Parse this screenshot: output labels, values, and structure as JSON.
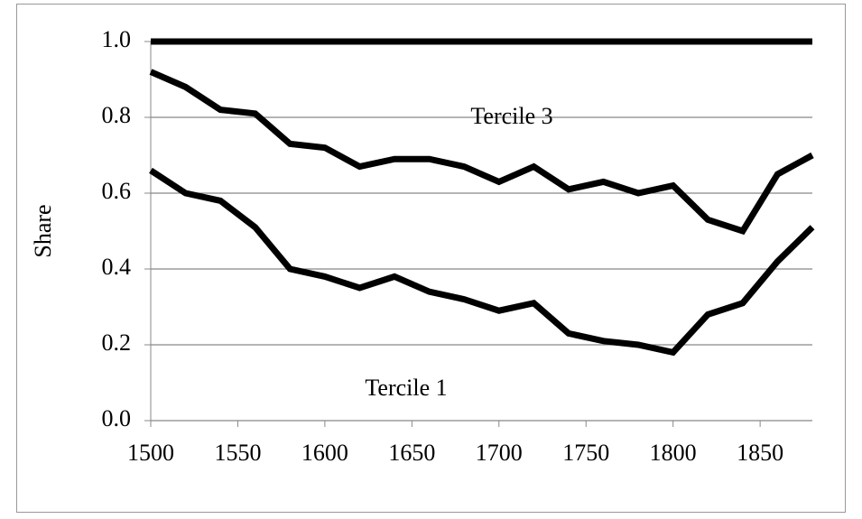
{
  "chart_data": {
    "type": "line",
    "y_label": "Share",
    "x": [
      1500,
      1520,
      1540,
      1560,
      1580,
      1600,
      1620,
      1640,
      1660,
      1680,
      1700,
      1720,
      1740,
      1760,
      1780,
      1800,
      1820,
      1840,
      1860,
      1880
    ],
    "series": [
      {
        "color": "#000000",
        "values": [
          1.0,
          1.0,
          1.0,
          1.0,
          1.0,
          1.0,
          1.0,
          1.0,
          1.0,
          1.0,
          1.0,
          1.0,
          1.0,
          1.0,
          1.0,
          1.0,
          1.0,
          1.0,
          1.0,
          1.0
        ]
      },
      {
        "color": "#000000",
        "values": [
          0.92,
          0.88,
          0.82,
          0.81,
          0.73,
          0.72,
          0.67,
          0.69,
          0.69,
          0.67,
          0.63,
          0.67,
          0.61,
          0.63,
          0.6,
          0.62,
          0.53,
          0.5,
          0.65,
          0.7
        ]
      },
      {
        "color": "#000000",
        "values": [
          0.66,
          0.6,
          0.58,
          0.51,
          0.4,
          0.38,
          0.35,
          0.38,
          0.34,
          0.32,
          0.29,
          0.31,
          0.23,
          0.21,
          0.2,
          0.18,
          0.28,
          0.31,
          0.42,
          0.51
        ]
      }
    ],
    "annotations": [
      "Tercile 3",
      "Tercile 1"
    ],
    "xlim": [
      1500,
      1880
    ],
    "xticks": [
      1500,
      1550,
      1600,
      1650,
      1700,
      1750,
      1800,
      1850
    ],
    "ylim": [
      0,
      1
    ],
    "yticks": [
      {
        "value": 0,
        "label": "0.0"
      },
      0.2,
      0.4,
      0.6,
      0.8,
      {
        "value": 1,
        "label": "1.0"
      }
    ],
    "grid": true
  }
}
